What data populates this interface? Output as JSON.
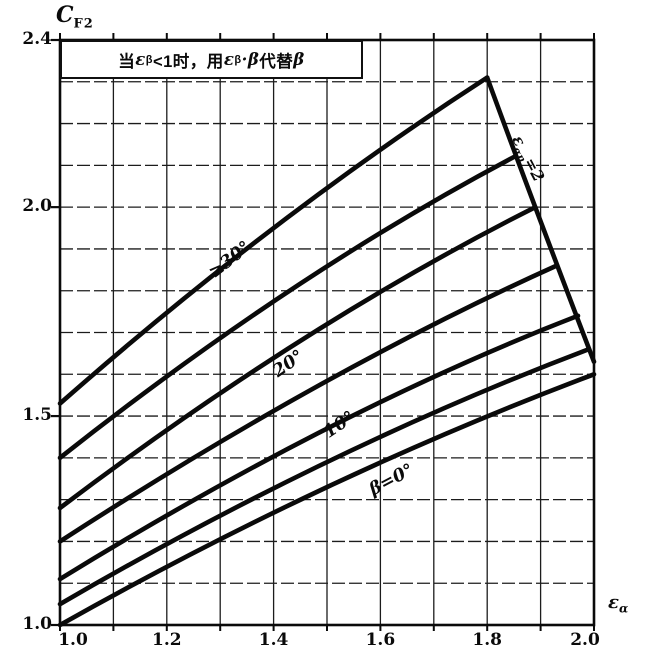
{
  "figure": {
    "background": "#ffffff",
    "ink_color": "#0a0a0a",
    "grid_color": "#1c1c1c"
  },
  "labels": {
    "y_axis": {
      "main": "C",
      "sub": "F2"
    },
    "x_axis": {
      "main": "ε",
      "sub": "α"
    },
    "note": {
      "p1": "当",
      "e1": "ε",
      "s1": "β",
      "p2": "<1时，用",
      "e2": "ε",
      "s2": "β",
      "p3": "·",
      "b1": "β",
      "p4": "代替",
      "b2": "β"
    },
    "curves": {
      "b30": "≥30°",
      "b20": "20°",
      "b10": "10°",
      "b0": "β=0°"
    },
    "boundary": {
      "e": "ε",
      "sub": "αn",
      "eq": "=2"
    }
  },
  "chart_data": {
    "type": "line",
    "title": "当εβ<1时，用εβ·β代替β",
    "xlabel": "εα",
    "ylabel": "CF2",
    "xlim": [
      1.0,
      2.0
    ],
    "ylim": [
      1.0,
      2.4
    ],
    "grid": "on",
    "grid_step": 0.1,
    "x_ticks": [
      "1.0",
      "1.2",
      "1.4",
      "1.6",
      "1.8",
      "2.0"
    ],
    "x_tick_values": [
      1.0,
      1.2,
      1.4,
      1.6,
      1.8,
      2.0
    ],
    "y_ticks": [
      "2.4",
      "2.0",
      "1.5",
      "1.0"
    ],
    "y_tick_values": [
      2.4,
      2.0,
      1.5,
      1.0
    ],
    "legend_position": "labels-on-curves",
    "series": [
      {
        "name": "β=0°",
        "points": [
          [
            1.0,
            1.0
          ],
          [
            1.5,
            1.33
          ],
          [
            2.0,
            1.6
          ]
        ]
      },
      {
        "name": "β=5°",
        "points": [
          [
            1.0,
            1.05
          ],
          [
            1.5,
            1.39
          ],
          [
            1.99,
            1.66
          ]
        ]
      },
      {
        "name": "β=10°",
        "points": [
          [
            1.0,
            1.11
          ],
          [
            1.5,
            1.47
          ],
          [
            1.97,
            1.74
          ]
        ]
      },
      {
        "name": "β=15°",
        "points": [
          [
            1.0,
            1.2
          ],
          [
            1.48,
            1.57
          ],
          [
            1.93,
            1.86
          ]
        ]
      },
      {
        "name": "β=20°",
        "points": [
          [
            1.0,
            1.28
          ],
          [
            1.45,
            1.68
          ],
          [
            1.89,
            2.0
          ]
        ]
      },
      {
        "name": "β=25°",
        "points": [
          [
            1.0,
            1.4
          ],
          [
            1.43,
            1.8
          ],
          [
            1.85,
            2.12
          ]
        ]
      },
      {
        "name": "β≥30°",
        "points": [
          [
            1.0,
            1.53
          ],
          [
            1.4,
            1.95
          ],
          [
            1.8,
            2.31
          ]
        ]
      },
      {
        "name": "εαn=2 boundary",
        "points": [
          [
            1.8,
            2.31
          ],
          [
            1.89,
            2.0
          ],
          [
            2.0,
            1.63
          ]
        ]
      }
    ]
  }
}
